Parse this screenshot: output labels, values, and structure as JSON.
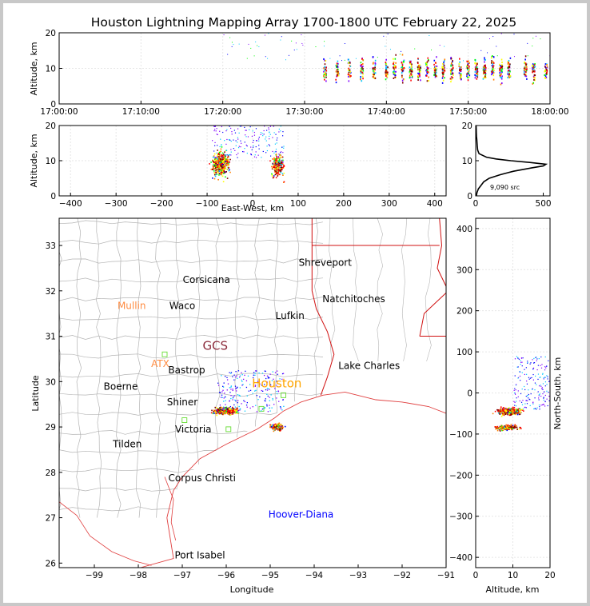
{
  "chart_data": [
    {
      "panel": "altitude-vs-time",
      "type": "scatter",
      "title": "Houston Lightning Mapping Array 1700-1800 UTC February 22, 2025",
      "ylabel": "Altitude, km",
      "xlabel": "",
      "xlim": [
        "17:00:00",
        "18:00:00"
      ],
      "ylim": [
        0,
        20
      ],
      "xticks": [
        "17:00:00",
        "17:10:00",
        "17:20:00",
        "17:30:00",
        "17:40:00",
        "17:50:00",
        "18:00:00"
      ],
      "yticks": [
        "0",
        "10",
        "20"
      ],
      "activity_bursts_minutes_after_1700": [
        32.5,
        34,
        35.5,
        37,
        38.5,
        40,
        41,
        42,
        43,
        44,
        45,
        46,
        47,
        48,
        49,
        50,
        51,
        52,
        53,
        54,
        55,
        57,
        58,
        59.5
      ],
      "altitude_core_km": [
        6,
        13
      ]
    },
    {
      "panel": "altitude-vs-east-west",
      "type": "scatter",
      "xlabel": "East-West, km",
      "ylabel": "Altitude, km",
      "xlim": [
        -425,
        425
      ],
      "ylim": [
        0,
        20
      ],
      "xticks": [
        "−400",
        "−300",
        "−200",
        "−100",
        "0",
        "100",
        "200",
        "300",
        "400"
      ],
      "yticks": [
        "0",
        "10",
        "20"
      ],
      "clusters": [
        {
          "east_west_km": -70,
          "altitude_km": 9
        },
        {
          "east_west_km": 55,
          "altitude_km": 8.5
        }
      ]
    },
    {
      "panel": "source-altitude-histogram",
      "type": "line",
      "annotation": "9,090 src",
      "xlim": [
        0,
        550
      ],
      "ylim": [
        0,
        20
      ],
      "xticks": [
        "0",
        "500"
      ],
      "yticks": [
        "0",
        "10",
        "20"
      ],
      "altitude_km": [
        0,
        1,
        2,
        3,
        4,
        5,
        6,
        7,
        8,
        8.5,
        9,
        9.5,
        10,
        10.5,
        11,
        12,
        13,
        14,
        15,
        16,
        17,
        18,
        19,
        20
      ],
      "source_count": [
        5,
        10,
        20,
        40,
        60,
        100,
        180,
        280,
        420,
        500,
        520,
        400,
        260,
        150,
        80,
        25,
        15,
        12,
        10,
        8,
        6,
        5,
        4,
        3
      ]
    },
    {
      "panel": "plan-view-map",
      "type": "scatter",
      "xlabel": "Longitude",
      "ylabel": "Latitude",
      "xlim": [
        -99.8,
        -91
      ],
      "ylim": [
        25.9,
        33.6
      ],
      "xticks": [
        "−99",
        "−98",
        "−97",
        "−96",
        "−95",
        "−94",
        "−93",
        "−92",
        "−91"
      ],
      "yticks": [
        "26",
        "27",
        "28",
        "29",
        "30",
        "31",
        "32",
        "33"
      ],
      "places": [
        {
          "name": "Shreveport",
          "lon": -93.75,
          "lat": 32.55,
          "color": "#000000"
        },
        {
          "name": "Corsicana",
          "lon": -96.45,
          "lat": 32.17,
          "color": "#000000"
        },
        {
          "name": "Natchitoches",
          "lon": -93.1,
          "lat": 31.75,
          "color": "#000000"
        },
        {
          "name": "Mullin",
          "lon": -98.15,
          "lat": 31.6,
          "color": "#ff8c42"
        },
        {
          "name": "Waco",
          "lon": -97.0,
          "lat": 31.6,
          "color": "#000000"
        },
        {
          "name": "Lufkin",
          "lon": -94.55,
          "lat": 31.38,
          "color": "#000000"
        },
        {
          "name": "GCS",
          "lon": -96.25,
          "lat": 30.7,
          "color": "#8b2a3a"
        },
        {
          "name": "ATX",
          "lon": -97.5,
          "lat": 30.32,
          "color": "#ff8c42"
        },
        {
          "name": "Bastrop",
          "lon": -96.9,
          "lat": 30.18,
          "color": "#000000"
        },
        {
          "name": "Lake Charles",
          "lon": -92.75,
          "lat": 30.28,
          "color": "#000000"
        },
        {
          "name": "Houston",
          "lon": -94.85,
          "lat": 29.87,
          "color": "#ffa500"
        },
        {
          "name": "Boerne",
          "lon": -98.4,
          "lat": 29.82,
          "color": "#000000"
        },
        {
          "name": "Shiner",
          "lon": -97.0,
          "lat": 29.48,
          "color": "#000000"
        },
        {
          "name": "Victoria",
          "lon": -96.75,
          "lat": 28.88,
          "color": "#000000"
        },
        {
          "name": "Tilden",
          "lon": -98.25,
          "lat": 28.55,
          "color": "#000000"
        },
        {
          "name": "Corpus Christi",
          "lon": -96.55,
          "lat": 27.8,
          "color": "#000000"
        },
        {
          "name": "Hoover-Diana",
          "lon": -94.3,
          "lat": 27.0,
          "color": "#0000ff"
        },
        {
          "name": "Port Isabel",
          "lon": -96.6,
          "lat": 26.1,
          "color": "#000000"
        }
      ],
      "clusters": [
        {
          "lon": -96.0,
          "lat": 29.35
        },
        {
          "lon": -94.85,
          "lat": 29.0
        }
      ]
    },
    {
      "panel": "north-south-vs-altitude",
      "type": "scatter",
      "xlabel": "Altitude, km",
      "ylabel": "North-South, km",
      "xlim": [
        0,
        20
      ],
      "ylim": [
        -425,
        425
      ],
      "xticks": [
        "0",
        "10",
        "20"
      ],
      "yticks": [
        "−400",
        "−300",
        "−200",
        "−100",
        "0",
        "100",
        "200",
        "300",
        "400"
      ],
      "clusters": [
        {
          "altitude_km": 9,
          "north_south_km": -45
        },
        {
          "altitude_km": 8.5,
          "north_south_km": -85
        }
      ]
    }
  ],
  "colors": {
    "state_border": "#d01010",
    "coastline": "#e04040",
    "county": "#b4b4b4",
    "gradient": [
      "#8000ff",
      "#0000ff",
      "#00c8ff",
      "#00ff00",
      "#ffff00",
      "#ff8000",
      "#ff0000",
      "#800000",
      "#ffffff"
    ]
  }
}
